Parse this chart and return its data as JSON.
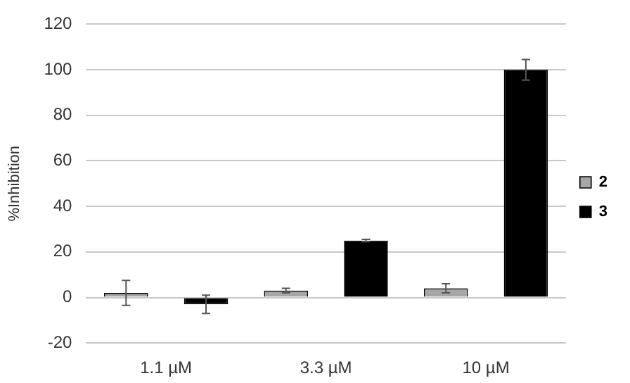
{
  "chart_data": {
    "type": "bar",
    "ylabel": "%Inhibition",
    "categories": [
      "1.1 µM",
      "3.3 µM",
      "10 µM"
    ],
    "series": [
      {
        "name": "2",
        "color": "#a6a6a6",
        "values": [
          2,
          3,
          4
        ],
        "errors": [
          5.5,
          1,
          2
        ]
      },
      {
        "name": "3",
        "color": "#000000",
        "values": [
          -3,
          25,
          100
        ],
        "errors": [
          4,
          0.5,
          4.5
        ]
      }
    ],
    "ylim": [
      -20,
      120
    ],
    "yticks": [
      -20,
      0,
      20,
      40,
      60,
      80,
      100,
      120
    ],
    "grid": "y",
    "legend": "right"
  }
}
